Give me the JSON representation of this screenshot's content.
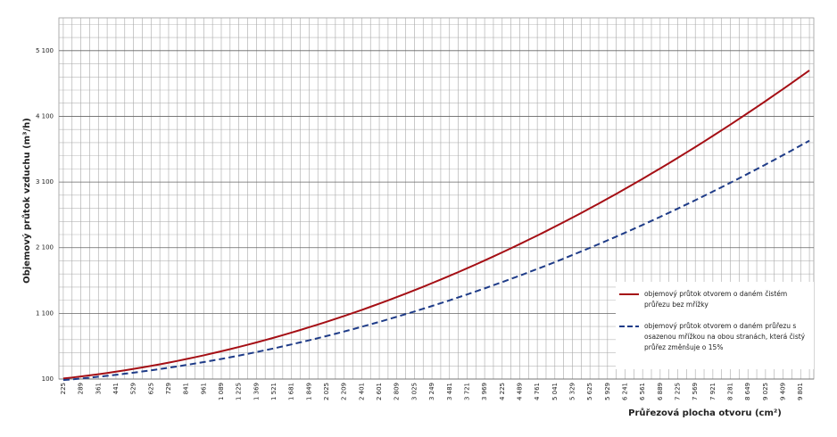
{
  "chart_data": {
    "type": "line",
    "ylabel": "Objemový průtok vzduchu (m³/h)",
    "xlabel": "Průřezová plocha otvoru (cm²)",
    "categories": [
      "225",
      null,
      "289",
      null,
      "361",
      null,
      "441",
      null,
      "529",
      null,
      "625",
      null,
      "729",
      null,
      "841",
      null,
      "961",
      null,
      "1 089",
      null,
      "1 225",
      null,
      "1 369",
      null,
      "1 521",
      null,
      "1 681",
      null,
      "1 849",
      null,
      "2 025",
      null,
      "2 209",
      null,
      "2 401",
      null,
      "2 601",
      null,
      "2 809",
      null,
      "3 025",
      null,
      "3 249",
      null,
      "3 481",
      null,
      "3 721",
      null,
      "3 969",
      null,
      "4 225",
      null,
      "4 489",
      null,
      "4 761",
      null,
      "5 041",
      null,
      "5 329",
      null,
      "5 625",
      null,
      "5 929",
      null,
      "6 241",
      null,
      "6 561",
      null,
      "6 889",
      null,
      "7 225",
      null,
      "7 569",
      null,
      "7 921",
      null,
      "8 281",
      null,
      "8 649",
      null,
      "9 025",
      null,
      "9 409",
      null,
      "9 801",
      null
    ],
    "series": [
      {
        "name": "objemový průtok otvorem o daném čistém průřezu bez mřížky",
        "color": "#a50f15",
        "dashed": false,
        "values": [
          108,
          123,
          139,
          156,
          173,
          192,
          212,
          232,
          254,
          276,
          300,
          324,
          350,
          376,
          404,
          432,
          461,
          492,
          523,
          555,
          588,
          622,
          657,
          693,
          730,
          768,
          807,
          847,
          888,
          929,
          972,
          1016,
          1060,
          1106,
          1152,
          1200,
          1248,
          1298,
          1348,
          1400,
          1452,
          1505,
          1560,
          1615,
          1671,
          1728,
          1786,
          1845,
          1905,
          1966,
          2028,
          2091,
          2155,
          2220,
          2285,
          2352,
          2420,
          2488,
          2558,
          2628,
          2700,
          2772,
          2846,
          2920,
          2996,
          3072,
          3149,
          3228,
          3307,
          3387,
          3468,
          3550,
          3633,
          3717,
          3802,
          3888,
          3975,
          4063,
          4152,
          4241,
          4332,
          4424,
          4516,
          4610,
          4704,
          4800
        ]
      },
      {
        "name": "objemový průtok otvorem o daném průřezu s osazenou mřížkou na obou stranách, která čistý průřez změnšuje o 15%",
        "color": "#1f3c88",
        "dashed": true,
        "values": [
          84,
          95,
          108,
          121,
          135,
          149,
          164,
          181,
          197,
          215,
          233,
          252,
          272,
          292,
          314,
          336,
          358,
          382,
          406,
          431,
          457,
          483,
          511,
          539,
          567,
          597,
          627,
          658,
          690,
          722,
          755,
          789,
          824,
          859,
          896,
          933,
          970,
          1009,
          1048,
          1088,
          1128,
          1170,
          1212,
          1255,
          1298,
          1343,
          1388,
          1434,
          1480,
          1528,
          1576,
          1625,
          1674,
          1725,
          1776,
          1828,
          1880,
          1934,
          1988,
          2043,
          2098,
          2154,
          2212,
          2269,
          2328,
          2387,
          2447,
          2508,
          2570,
          2632,
          2695,
          2759,
          2823,
          2889,
          2955,
          3021,
          3089,
          3157,
          3226,
          3296,
          3366,
          3438,
          3510,
          3582,
          3656,
          3730
        ]
      }
    ],
    "ylim": [
      100,
      5600
    ],
    "yticks": [
      100,
      {
        "value": 1100,
        "label": "1 100"
      },
      {
        "value": 2100,
        "label": "2 100"
      },
      {
        "value": 3100,
        "label": "3 100"
      },
      {
        "value": 4100,
        "label": "4 100"
      },
      {
        "value": 5100,
        "label": "5 100"
      }
    ],
    "minor_yticks": [
      300,
      500,
      700,
      900,
      1300,
      1500,
      1700,
      1900,
      2300,
      2500,
      2700,
      2900,
      3300,
      3500,
      3700,
      3900,
      4300,
      4500,
      4700,
      4900,
      5300,
      5500
    ],
    "grid": true,
    "legend": "lower right"
  }
}
